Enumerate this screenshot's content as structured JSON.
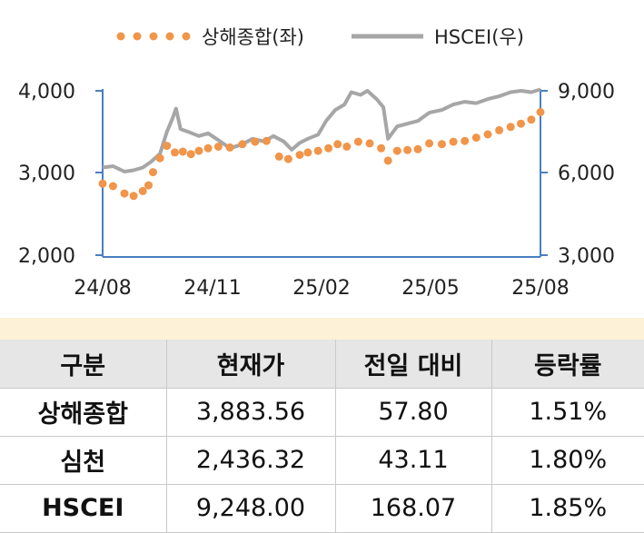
{
  "chart_data": {
    "type": "line",
    "x_ticks": [
      "24/08",
      "24/11",
      "25/02",
      "25/05",
      "25/08"
    ],
    "x_range": [
      "2024-08",
      "2025-08"
    ],
    "y_left": {
      "ticks": [
        "2,000",
        "3,000",
        "4,000"
      ],
      "range": [
        2000,
        4000
      ]
    },
    "y_right": {
      "ticks": [
        "3,000",
        "6,000",
        "9,000"
      ],
      "range": [
        3000,
        9000
      ]
    },
    "series": [
      {
        "name": "상해종합(좌)",
        "axis": "left",
        "style": "dotted",
        "color": "#f0954a",
        "values": [
          [
            "2024-08-01",
            2870
          ],
          [
            "2024-08-10",
            2840
          ],
          [
            "2024-08-20",
            2750
          ],
          [
            "2024-08-28",
            2720
          ],
          [
            "2024-09-05",
            2780
          ],
          [
            "2024-09-10",
            2850
          ],
          [
            "2024-09-14",
            3010
          ],
          [
            "2024-09-20",
            3180
          ],
          [
            "2024-09-26",
            3330
          ],
          [
            "2024-10-03",
            3250
          ],
          [
            "2024-10-10",
            3260
          ],
          [
            "2024-10-17",
            3230
          ],
          [
            "2024-10-24",
            3270
          ],
          [
            "2024-11-01",
            3300
          ],
          [
            "2024-11-10",
            3320
          ],
          [
            "2024-11-20",
            3310
          ],
          [
            "2024-12-01",
            3350
          ],
          [
            "2024-12-12",
            3380
          ],
          [
            "2024-12-22",
            3390
          ],
          [
            "2025-01-02",
            3200
          ],
          [
            "2025-01-10",
            3170
          ],
          [
            "2025-01-20",
            3220
          ],
          [
            "2025-01-27",
            3250
          ],
          [
            "2025-02-05",
            3270
          ],
          [
            "2025-02-14",
            3300
          ],
          [
            "2025-02-22",
            3350
          ],
          [
            "2025-03-02",
            3320
          ],
          [
            "2025-03-12",
            3380
          ],
          [
            "2025-03-22",
            3360
          ],
          [
            "2025-04-01",
            3300
          ],
          [
            "2025-04-07",
            3150
          ],
          [
            "2025-04-15",
            3270
          ],
          [
            "2025-04-24",
            3280
          ],
          [
            "2025-05-03",
            3290
          ],
          [
            "2025-05-13",
            3360
          ],
          [
            "2025-05-24",
            3350
          ],
          [
            "2025-06-03",
            3380
          ],
          [
            "2025-06-13",
            3390
          ],
          [
            "2025-06-23",
            3430
          ],
          [
            "2025-07-03",
            3470
          ],
          [
            "2025-07-13",
            3520
          ],
          [
            "2025-07-23",
            3560
          ],
          [
            "2025-08-01",
            3600
          ],
          [
            "2025-08-10",
            3650
          ],
          [
            "2025-08-18",
            3740
          ]
        ]
      },
      {
        "name": "HSCEI(우)",
        "axis": "right",
        "style": "solid",
        "color": "#a6a6a6",
        "values": [
          [
            "2024-08-01",
            6200
          ],
          [
            "2024-08-10",
            6250
          ],
          [
            "2024-08-20",
            6050
          ],
          [
            "2024-08-28",
            6100
          ],
          [
            "2024-09-05",
            6200
          ],
          [
            "2024-09-12",
            6400
          ],
          [
            "2024-09-20",
            6700
          ],
          [
            "2024-09-26",
            7500
          ],
          [
            "2024-10-01",
            8000
          ],
          [
            "2024-10-04",
            8350
          ],
          [
            "2024-10-08",
            7600
          ],
          [
            "2024-10-15",
            7500
          ],
          [
            "2024-10-24",
            7350
          ],
          [
            "2024-11-01",
            7450
          ],
          [
            "2024-11-10",
            7200
          ],
          [
            "2024-11-20",
            6900
          ],
          [
            "2024-12-01",
            7050
          ],
          [
            "2024-12-10",
            7250
          ],
          [
            "2024-12-20",
            7150
          ],
          [
            "2024-12-28",
            7350
          ],
          [
            "2025-01-06",
            7150
          ],
          [
            "2025-01-13",
            6850
          ],
          [
            "2025-01-20",
            7100
          ],
          [
            "2025-01-27",
            7250
          ],
          [
            "2025-02-05",
            7400
          ],
          [
            "2025-02-12",
            7900
          ],
          [
            "2025-02-20",
            8300
          ],
          [
            "2025-02-28",
            8500
          ],
          [
            "2025-03-06",
            8950
          ],
          [
            "2025-03-14",
            8850
          ],
          [
            "2025-03-20",
            9000
          ],
          [
            "2025-03-28",
            8700
          ],
          [
            "2025-04-03",
            8400
          ],
          [
            "2025-04-07",
            7250
          ],
          [
            "2025-04-15",
            7700
          ],
          [
            "2025-04-24",
            7800
          ],
          [
            "2025-05-03",
            7900
          ],
          [
            "2025-05-13",
            8200
          ],
          [
            "2025-05-24",
            8300
          ],
          [
            "2025-06-03",
            8500
          ],
          [
            "2025-06-13",
            8600
          ],
          [
            "2025-06-23",
            8550
          ],
          [
            "2025-07-03",
            8700
          ],
          [
            "2025-07-13",
            8800
          ],
          [
            "2025-07-23",
            8950
          ],
          [
            "2025-08-01",
            9000
          ],
          [
            "2025-08-10",
            8950
          ],
          [
            "2025-08-18",
            9050
          ]
        ]
      }
    ]
  },
  "table": {
    "headers": [
      "구분",
      "현재가",
      "전일 대비",
      "등락률"
    ],
    "rows": [
      [
        "상해종합",
        "3,883.56",
        "57.80",
        "1.51%"
      ],
      [
        "심천",
        "2,436.32",
        "43.11",
        "1.80%"
      ],
      [
        "HSCEI",
        "9,248.00",
        "168.07",
        "1.85%"
      ]
    ]
  },
  "colors": {
    "shanghai": "#f0954a",
    "hscei": "#a6a6a6",
    "axis": "#4a7fc1",
    "header_bg": "#e6e6e6"
  }
}
